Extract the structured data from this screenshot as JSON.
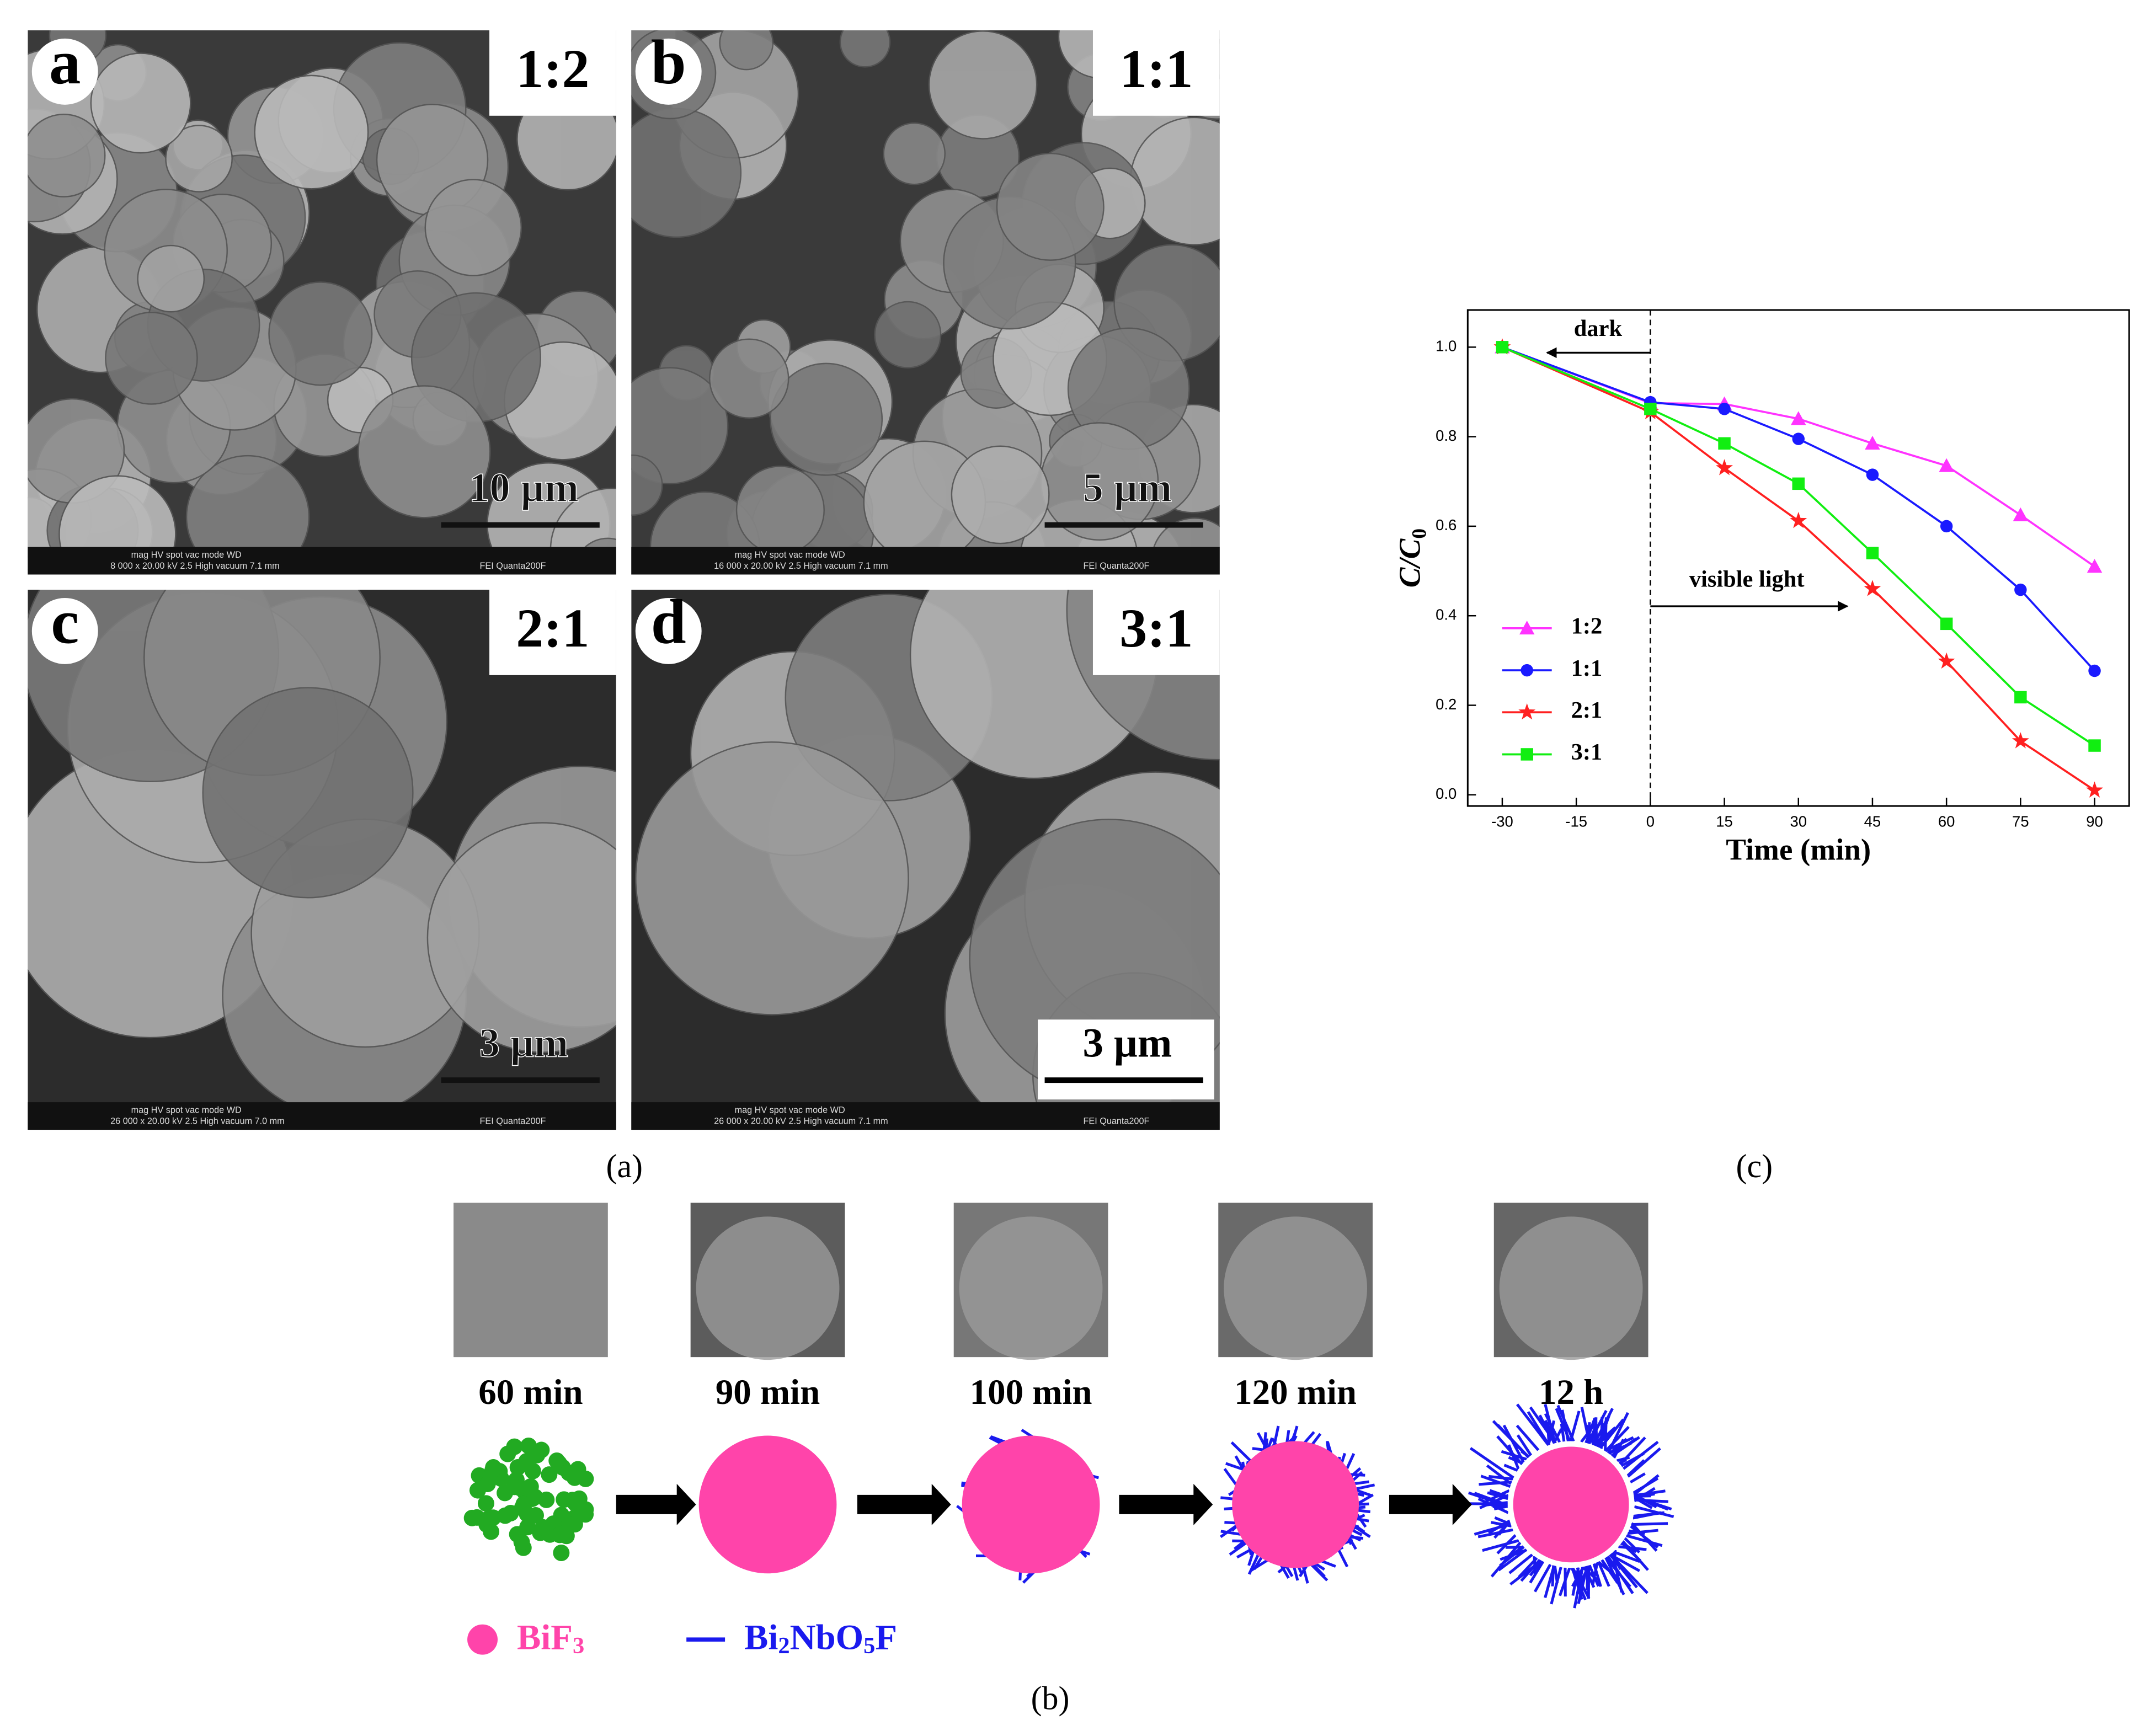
{
  "chart_data": {
    "type": "line",
    "xlabel": "Time (min)",
    "ylabel": [
      "C/C",
      "0"
    ],
    "x": [
      -30,
      0,
      15,
      30,
      45,
      60,
      75,
      90
    ],
    "series": [
      {
        "name": "1:2",
        "color": "#ff33ff",
        "marker": "triangle",
        "values": [
          1.0,
          0.875,
          0.873,
          0.84,
          0.785,
          0.735,
          0.625,
          0.51
        ]
      },
      {
        "name": "1:1",
        "color": "#1a1aff",
        "marker": "circle",
        "values": [
          1.0,
          0.877,
          0.862,
          0.795,
          0.715,
          0.6,
          0.458,
          0.277
        ]
      },
      {
        "name": "2:1",
        "color": "#ff2020",
        "marker": "star",
        "values": [
          1.0,
          0.855,
          0.73,
          0.612,
          0.46,
          0.298,
          0.12,
          0.01
        ]
      },
      {
        "name": "3:1",
        "color": "#11ee11",
        "marker": "square",
        "values": [
          1.0,
          0.862,
          0.785,
          0.695,
          0.54,
          0.382,
          0.218,
          0.11
        ]
      }
    ],
    "xlim": [
      -37,
      97
    ],
    "ylim": [
      -0.025,
      1.083
    ],
    "xticks": [
      -30,
      -15,
      0,
      15,
      30,
      45,
      60,
      75,
      90
    ],
    "yticks": [
      {
        "value": 0,
        "label": "0.0"
      },
      {
        "value": 0.2,
        "label": "0.2"
      },
      {
        "value": 0.4,
        "label": "0.4"
      },
      {
        "value": 0.6,
        "label": "0.6"
      },
      {
        "value": 0.8,
        "label": "0.8"
      },
      {
        "value": 1,
        "label": "1.0"
      }
    ],
    "annotations": [
      {
        "text": "dark",
        "x": 0
      },
      {
        "text": "visible light",
        "x": 0
      }
    ],
    "legend": "center-left"
  },
  "sem_panels": [
    {
      "letter": "a",
      "ratio": "1:2",
      "scale": "10 µm",
      "info_head": "mag   HV   spot  vac mode   WD",
      "info_vals": "8 000 x  20.00 kV  2.5  High vacuum  7.1 mm",
      "info_right": "FEI Quanta200F"
    },
    {
      "letter": "b",
      "ratio": "1:1",
      "scale": "5 µm",
      "info_head": "mag   HV   spot  vac mode   WD",
      "info_vals": "16 000 x  20.00 kV  2.5  High vacuum  7.1 mm",
      "info_right": "FEI Quanta200F"
    },
    {
      "letter": "c",
      "ratio": "2:1",
      "scale": "3 µm",
      "info_head": "mag   HV   spot  vac mode   WD",
      "info_vals": "26 000 x  20.00 kV  2.5  High vacuum  7.0 mm",
      "info_right": "FEI Quanta200F"
    },
    {
      "letter": "d",
      "ratio": "3:1",
      "scale": "3 µm",
      "info_head": "mag   HV   spot  vac mode   WD",
      "info_vals": "26 000 x  20.00 kV  2.5  High vacuum  7.1 mm",
      "info_right": "FEI Quanta200F"
    }
  ],
  "captions": {
    "a": "(a)",
    "b": "(b)",
    "c": "(c)"
  },
  "schematic": {
    "times": [
      "60 min",
      "90 min",
      "100 min",
      "120 min",
      "12 h"
    ],
    "legend": [
      [
        "BiF",
        "3"
      ],
      [
        "Bi",
        "2",
        "NbO",
        "5",
        "F"
      ]
    ]
  }
}
